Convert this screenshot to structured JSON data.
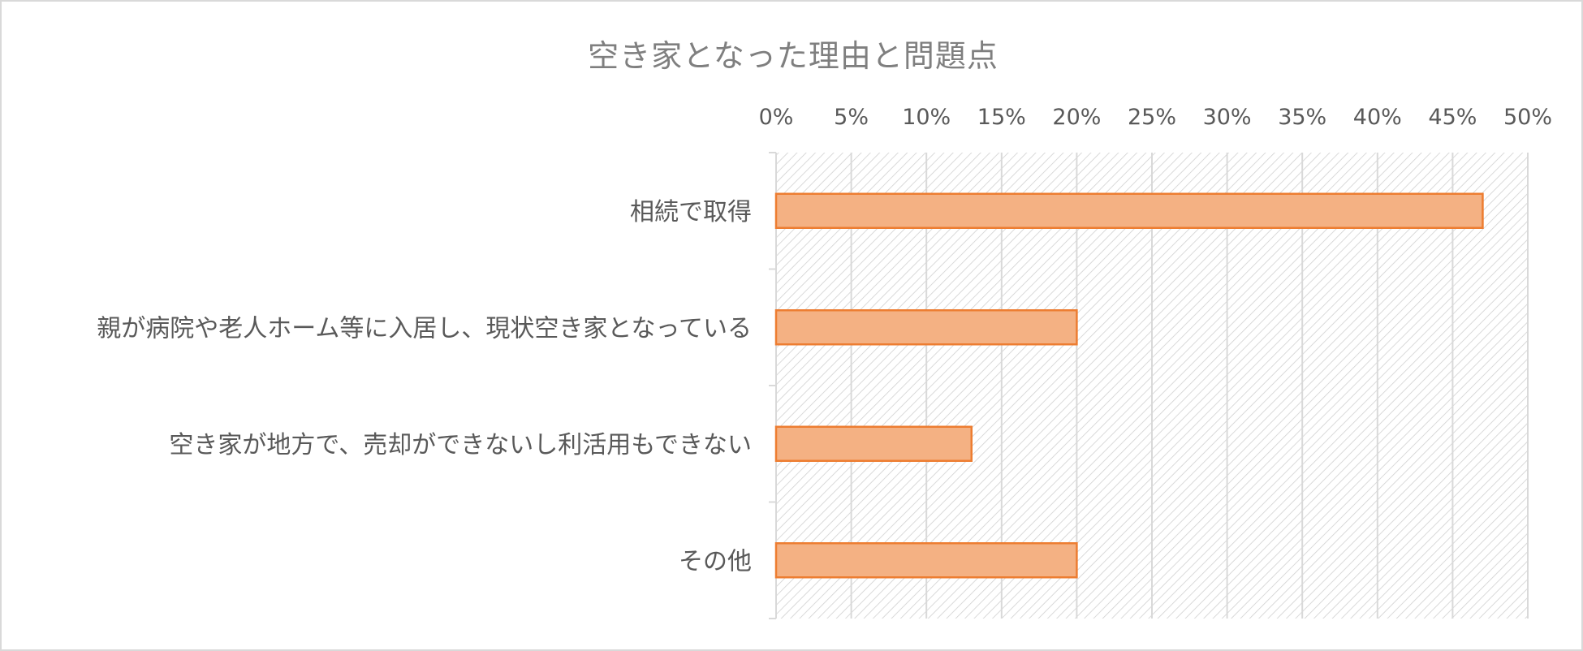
{
  "chart_data": {
    "type": "bar",
    "orientation": "horizontal",
    "title": "空き家となった理由と問題点",
    "categories": [
      "相続で取得",
      "親が病院や老人ホーム等に入居し、現状空き家となっている",
      "空き家が地方で、売却ができないし利活用もできない",
      "その他"
    ],
    "values": [
      0.47,
      0.2,
      0.13,
      0.2
    ],
    "x_ticks": [
      "0%",
      "5%",
      "10%",
      "15%",
      "20%",
      "25%",
      "30%",
      "35%",
      "40%",
      "45%",
      "50%"
    ],
    "xlim": [
      0,
      0.5
    ],
    "xaxis_position": "top",
    "grid": true,
    "legend": "none",
    "colors": {
      "bar_fill": "#f4b183",
      "bar_stroke": "#ed7d31",
      "plot_hatch": "#d0d0d0",
      "gridline": "#d9d9d9",
      "text": "#595959",
      "title": "#7f7f7f"
    }
  }
}
